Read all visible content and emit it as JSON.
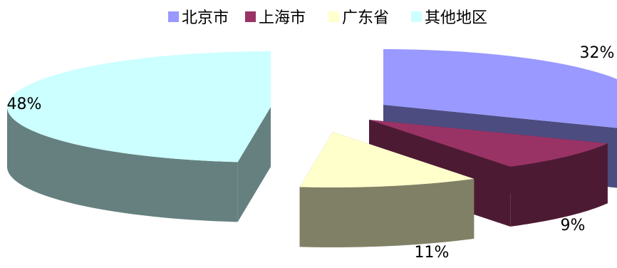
{
  "chart_data": {
    "type": "pie",
    "variant": "3d-exploded",
    "title": "",
    "legend_position": "top-center",
    "categories": [
      "北京市",
      "上海市",
      "广东省",
      "其他地区"
    ],
    "values": [
      32,
      9,
      11,
      48
    ],
    "value_labels": [
      "32%",
      "9%",
      "11%",
      "48%"
    ],
    "colors": [
      "#9999ff",
      "#993366",
      "#ffffcc",
      "#ccffff"
    ],
    "side_colors": [
      "#4c4c80",
      "#4d1a33",
      "#808066",
      "#668080"
    ]
  }
}
